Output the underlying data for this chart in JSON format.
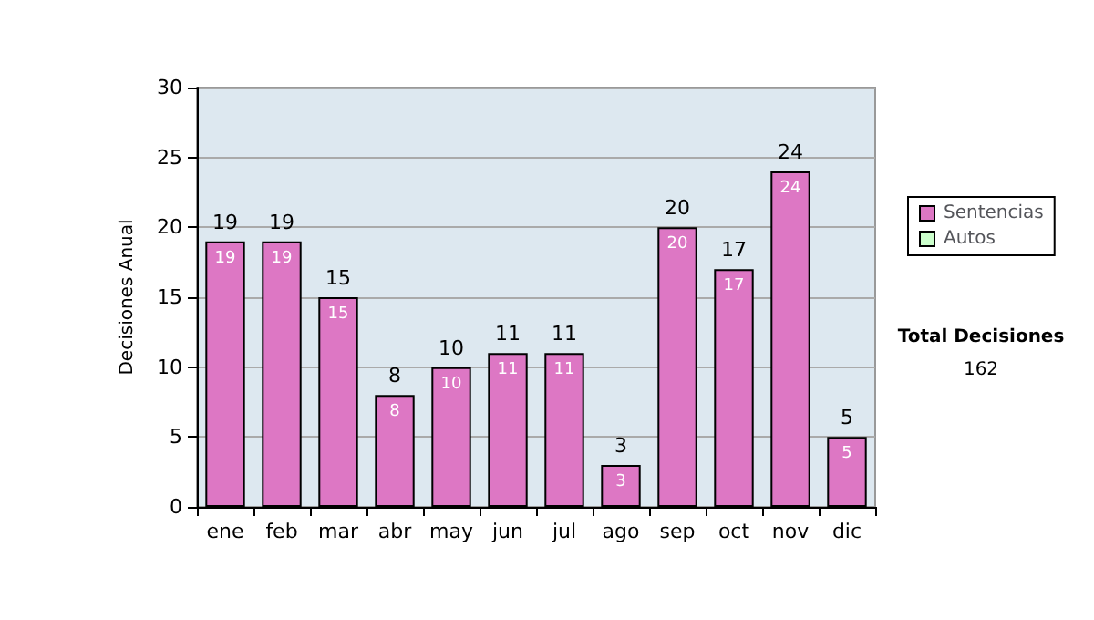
{
  "chart_data": {
    "type": "bar",
    "stacked": true,
    "ylabel": "Decisiones Anual",
    "categories": [
      "ene",
      "feb",
      "mar",
      "abr",
      "may",
      "jun",
      "jul",
      "ago",
      "sep",
      "oct",
      "nov",
      "dic"
    ],
    "series": [
      {
        "name": "Sentencias",
        "color": "#dd77c4",
        "values": [
          19,
          19,
          15,
          8,
          10,
          11,
          11,
          3,
          20,
          17,
          24,
          5
        ],
        "value_labels": [
          "19",
          "19",
          "15",
          "8",
          "10",
          "11",
          "11",
          "3",
          "20",
          "17",
          "24",
          "5"
        ]
      },
      {
        "name": "Autos",
        "color": "#ccffcc",
        "values": [
          0,
          0,
          0,
          0,
          0,
          0,
          0,
          0,
          0,
          0,
          0,
          0
        ]
      }
    ],
    "totals": [
      "19",
      "19",
      "15",
      "8",
      "10",
      "11",
      "11",
      "3",
      "20",
      "17",
      "24",
      "5"
    ],
    "ylim": [
      0,
      30
    ],
    "yticks": [
      0,
      5,
      10,
      15,
      20,
      25,
      30
    ],
    "grid": "y",
    "legend": "right",
    "annotations": [
      "Total Decisiones",
      "162"
    ]
  }
}
